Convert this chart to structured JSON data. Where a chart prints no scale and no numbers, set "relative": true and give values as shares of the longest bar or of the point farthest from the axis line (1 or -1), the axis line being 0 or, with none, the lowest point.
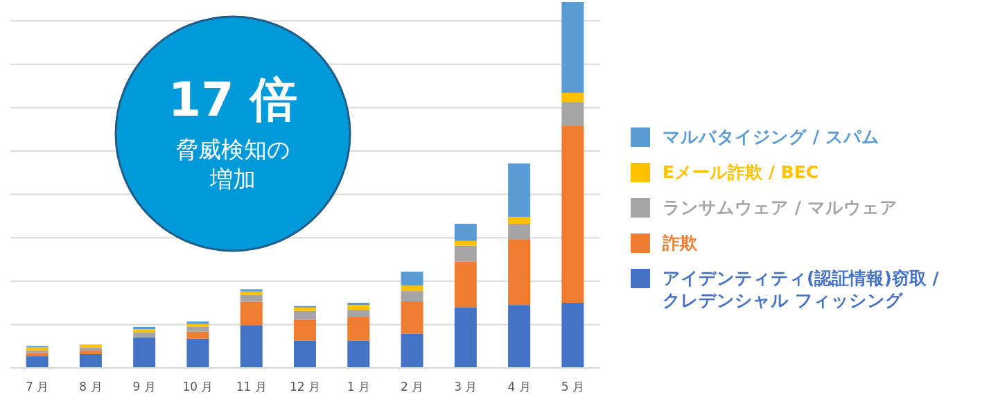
{
  "chart_data": {
    "type": "bar",
    "stacked": true,
    "relative": true,
    "grid": "y",
    "legend": "right",
    "annotations": [
      "17 倍",
      "脅威検知の増加"
    ],
    "categories": [
      "7 月",
      "8 月",
      "9 月",
      "10 月",
      "11 月",
      "12 月",
      "1 月",
      "2 月",
      "3 月",
      "4 月",
      "5 月"
    ],
    "series": [
      {
        "name": "アイデンティティ(認証情報)窃取 / クレデンシャル フィッシング",
        "color": "#4472c4",
        "values": [
          0.032,
          0.038,
          0.083,
          0.08,
          0.117,
          0.074,
          0.074,
          0.093,
          0.165,
          0.172,
          0.178
        ]
      },
      {
        "name": "詐欺",
        "color": "#ed7d31",
        "values": [
          0.009,
          0.009,
          0,
          0.019,
          0.064,
          0.057,
          0.066,
          0.089,
          0.125,
          0.18,
          0.483
        ]
      },
      {
        "name": "ランサムウェア / マルウェア",
        "color": "#a5a5a5",
        "values": [
          0.006,
          0.009,
          0.015,
          0.013,
          0.019,
          0.025,
          0.019,
          0.028,
          0.044,
          0.042,
          0.066
        ]
      },
      {
        "name": "Eメール詐欺 / BEC",
        "color": "#ffc000",
        "values": [
          0.009,
          0.008,
          0.008,
          0.009,
          0.009,
          0.009,
          0.013,
          0.015,
          0.013,
          0.019,
          0.025
        ]
      },
      {
        "name": "マルバタイジング / スパム",
        "color": "#5b9bd5",
        "values": [
          0.004,
          0,
          0.006,
          0.006,
          0.006,
          0.004,
          0.006,
          0.038,
          0.047,
          0.146,
          0.248
        ]
      }
    ]
  }
}
